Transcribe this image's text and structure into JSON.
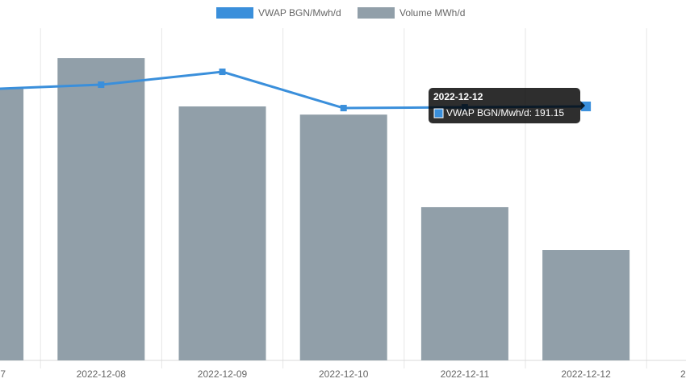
{
  "chart_data": {
    "type": "bar-line",
    "categories": [
      "7",
      "2022-12-08",
      "2022-12-09",
      "2022-12-10",
      "2022-12-11",
      "2022-12-12",
      "2"
    ],
    "series": [
      {
        "name": "VWAP BGN/Mwh/d",
        "type": "line",
        "color": "#3a8fdb",
        "axis": "y2",
        "values": [
          203.9,
          207.5,
          217.2,
          189.9,
          190.5,
          191.15,
          null
        ]
      },
      {
        "name": "Volume MWh/d",
        "type": "bar",
        "color": "#919fa9",
        "values": [
          8180,
          9100,
          7646,
          7400,
          4612,
          3325,
          null
        ]
      }
    ],
    "ylim": [
      0,
      10000
    ],
    "y2lim": [
      0,
      250
    ],
    "grid": true,
    "legend": "top",
    "tooltip": {
      "title": "2022-12-12",
      "label": "VWAP BGN/Mwh/d: 191.15",
      "index": 5
    }
  }
}
